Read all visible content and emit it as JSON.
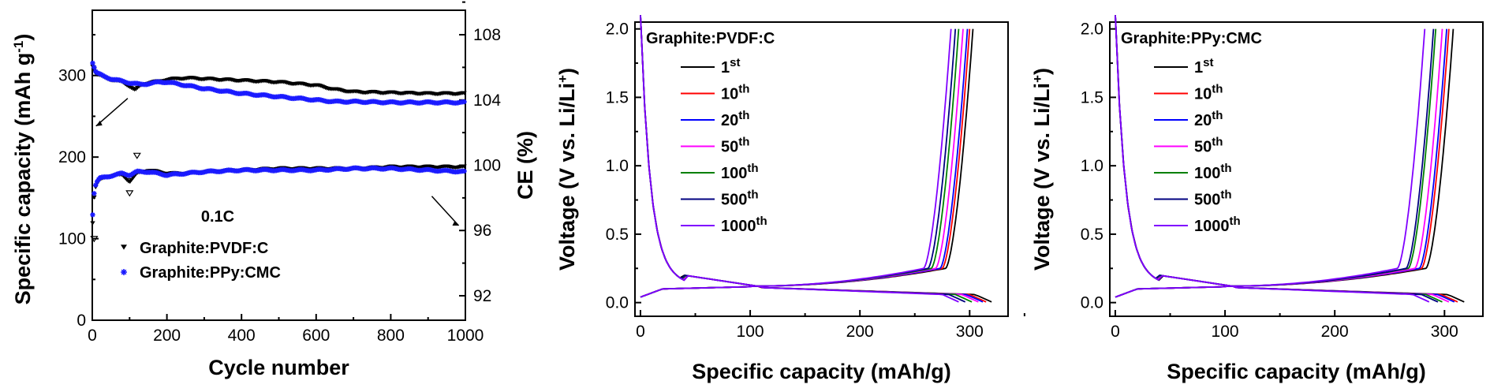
{
  "chart_data": [
    {
      "type": "scatter",
      "xlabel": "Cycle number",
      "ylabel": "Specific capacity (mAh g",
      "ylabel_sup": "-1",
      "ylabel_close": ")",
      "y2label": "CE (%)",
      "xlim": [
        0,
        1000
      ],
      "ylim": [
        0,
        380
      ],
      "y2lim": [
        90.5,
        109.5
      ],
      "xticks": [
        0,
        200,
        400,
        600,
        800,
        1000
      ],
      "yticks": [
        0,
        100,
        200,
        300
      ],
      "y2ticks": [
        92,
        96,
        100,
        104,
        108
      ],
      "annotation": "0.1C",
      "legend_position": "lower-left",
      "series": [
        {
          "name": "Graphite:PVDF:C",
          "color": "#000000",
          "marker": "down-triangle",
          "axis": "left",
          "x": [
            1,
            10,
            30,
            50,
            80,
            100,
            115,
            130,
            150,
            180,
            200,
            250,
            300,
            400,
            500,
            600,
            650,
            700,
            800,
            900,
            1000
          ],
          "y": [
            312,
            302,
            298,
            295,
            292,
            287,
            282,
            288,
            291,
            293,
            295,
            297,
            296,
            294,
            292,
            288,
            283,
            280,
            279,
            278,
            278
          ]
        },
        {
          "name": "Graphite:PPy:CMC",
          "color": "#1a1aff",
          "marker": "star",
          "axis": "left",
          "x": [
            1,
            10,
            30,
            50,
            80,
            100,
            130,
            150,
            180,
            200,
            250,
            300,
            400,
            500,
            600,
            650,
            700,
            800,
            900,
            1000
          ],
          "y": [
            316,
            304,
            299,
            296,
            293,
            291,
            289,
            290,
            292,
            292,
            288,
            284,
            278,
            274,
            270,
            268,
            268,
            267,
            267,
            267
          ]
        },
        {
          "name": "Graphite:PVDF:C CE",
          "color": "#000000",
          "marker": "down-triangle",
          "axis": "right",
          "x": [
            1,
            3,
            6,
            10,
            20,
            40,
            60,
            80,
            100,
            120,
            150,
            200,
            250,
            300,
            400,
            500,
            600,
            700,
            800,
            900,
            1000
          ],
          "y": [
            96.5,
            97.6,
            98.3,
            98.8,
            99.1,
            99.3,
            99.4,
            99.4,
            99.0,
            99.5,
            99.7,
            99.5,
            99.5,
            99.6,
            99.7,
            99.8,
            99.8,
            99.8,
            99.9,
            99.9,
            99.9
          ]
        },
        {
          "name": "Graphite:PPy:CMC CE",
          "color": "#1a1aff",
          "marker": "star",
          "axis": "right",
          "x": [
            1,
            3,
            6,
            10,
            20,
            40,
            60,
            80,
            100,
            120,
            150,
            200,
            250,
            300,
            400,
            500,
            600,
            700,
            800,
            900,
            1000
          ],
          "y": [
            97.0,
            97.9,
            98.5,
            98.9,
            99.2,
            99.3,
            99.4,
            99.5,
            99.4,
            99.6,
            99.6,
            99.4,
            99.5,
            99.6,
            99.7,
            99.7,
            99.7,
            99.8,
            99.8,
            99.7,
            99.6
          ]
        }
      ],
      "outliers": [
        {
          "x": 120,
          "y": 100.6,
          "axis": "right",
          "marker": "down-triangle-open"
        },
        {
          "x": 100,
          "y": 98.3,
          "axis": "right",
          "marker": "down-triangle-open"
        },
        {
          "x": 5,
          "y": 95.5,
          "axis": "right",
          "marker": "down-triangle-open"
        }
      ]
    },
    {
      "type": "line",
      "title": "Graphite:PVDF:C",
      "xlabel": "Specific capacity (mAh/g)",
      "ylabel": "Voltage (V vs. Li/Li",
      "ylabel_sup": "+",
      "ylabel_close": ")",
      "xlim": [
        -5,
        335
      ],
      "ylim": [
        -0.1,
        2.05
      ],
      "xticks": [
        0,
        100,
        200,
        300
      ],
      "yticks": [
        0.0,
        0.5,
        1.0,
        1.5,
        2.0
      ],
      "ytick_labels": [
        "0.0",
        "0.5",
        "1.0",
        "1.5",
        "2.0"
      ],
      "legend_position": "upper-left",
      "series": [
        {
          "name": "1",
          "suffix": "st",
          "color": "#000000",
          "discharge_cap": 320,
          "charge_cap": 303
        },
        {
          "name": "10",
          "suffix": "th",
          "color": "#ff0000",
          "discharge_cap": 315,
          "charge_cap": 300
        },
        {
          "name": "20",
          "suffix": "th",
          "color": "#0000ff",
          "discharge_cap": 312,
          "charge_cap": 298
        },
        {
          "name": "50",
          "suffix": "th",
          "color": "#ff00ff",
          "discharge_cap": 308,
          "charge_cap": 294
        },
        {
          "name": "100",
          "suffix": "th",
          "color": "#008000",
          "discharge_cap": 302,
          "charge_cap": 290
        },
        {
          "name": "500",
          "suffix": "th",
          "color": "#000080",
          "discharge_cap": 296,
          "charge_cap": 287
        },
        {
          "name": "1000",
          "suffix": "th",
          "color": "#8000ff",
          "discharge_cap": 290,
          "charge_cap": 283
        }
      ]
    },
    {
      "type": "line",
      "title": "Graphite:PPy:CMC",
      "xlabel": "Specific capacity (mAh/g)",
      "ylabel": "Voltage (V vs. Li/Li",
      "ylabel_sup": "+",
      "ylabel_close": ")",
      "xlim": [
        -5,
        335
      ],
      "ylim": [
        -0.1,
        2.05
      ],
      "xticks": [
        0,
        100,
        200,
        300
      ],
      "yticks": [
        0.0,
        0.5,
        1.0,
        1.5,
        2.0
      ],
      "ytick_labels": [
        "0.0",
        "0.5",
        "1.0",
        "1.5",
        "2.0"
      ],
      "legend_position": "upper-left",
      "series": [
        {
          "name": "1",
          "suffix": "st",
          "color": "#000000",
          "discharge_cap": 318,
          "charge_cap": 308
        },
        {
          "name": "10",
          "suffix": "th",
          "color": "#ff0000",
          "discharge_cap": 312,
          "charge_cap": 304
        },
        {
          "name": "20",
          "suffix": "th",
          "color": "#0000ff",
          "discharge_cap": 309,
          "charge_cap": 302
        },
        {
          "name": "50",
          "suffix": "th",
          "color": "#ff00ff",
          "discharge_cap": 304,
          "charge_cap": 298
        },
        {
          "name": "100",
          "suffix": "th",
          "color": "#008000",
          "discharge_cap": 298,
          "charge_cap": 292
        },
        {
          "name": "500",
          "suffix": "th",
          "color": "#000080",
          "discharge_cap": 294,
          "charge_cap": 290
        },
        {
          "name": "1000",
          "suffix": "th",
          "color": "#8000ff",
          "discharge_cap": 286,
          "charge_cap": 282
        }
      ]
    }
  ]
}
